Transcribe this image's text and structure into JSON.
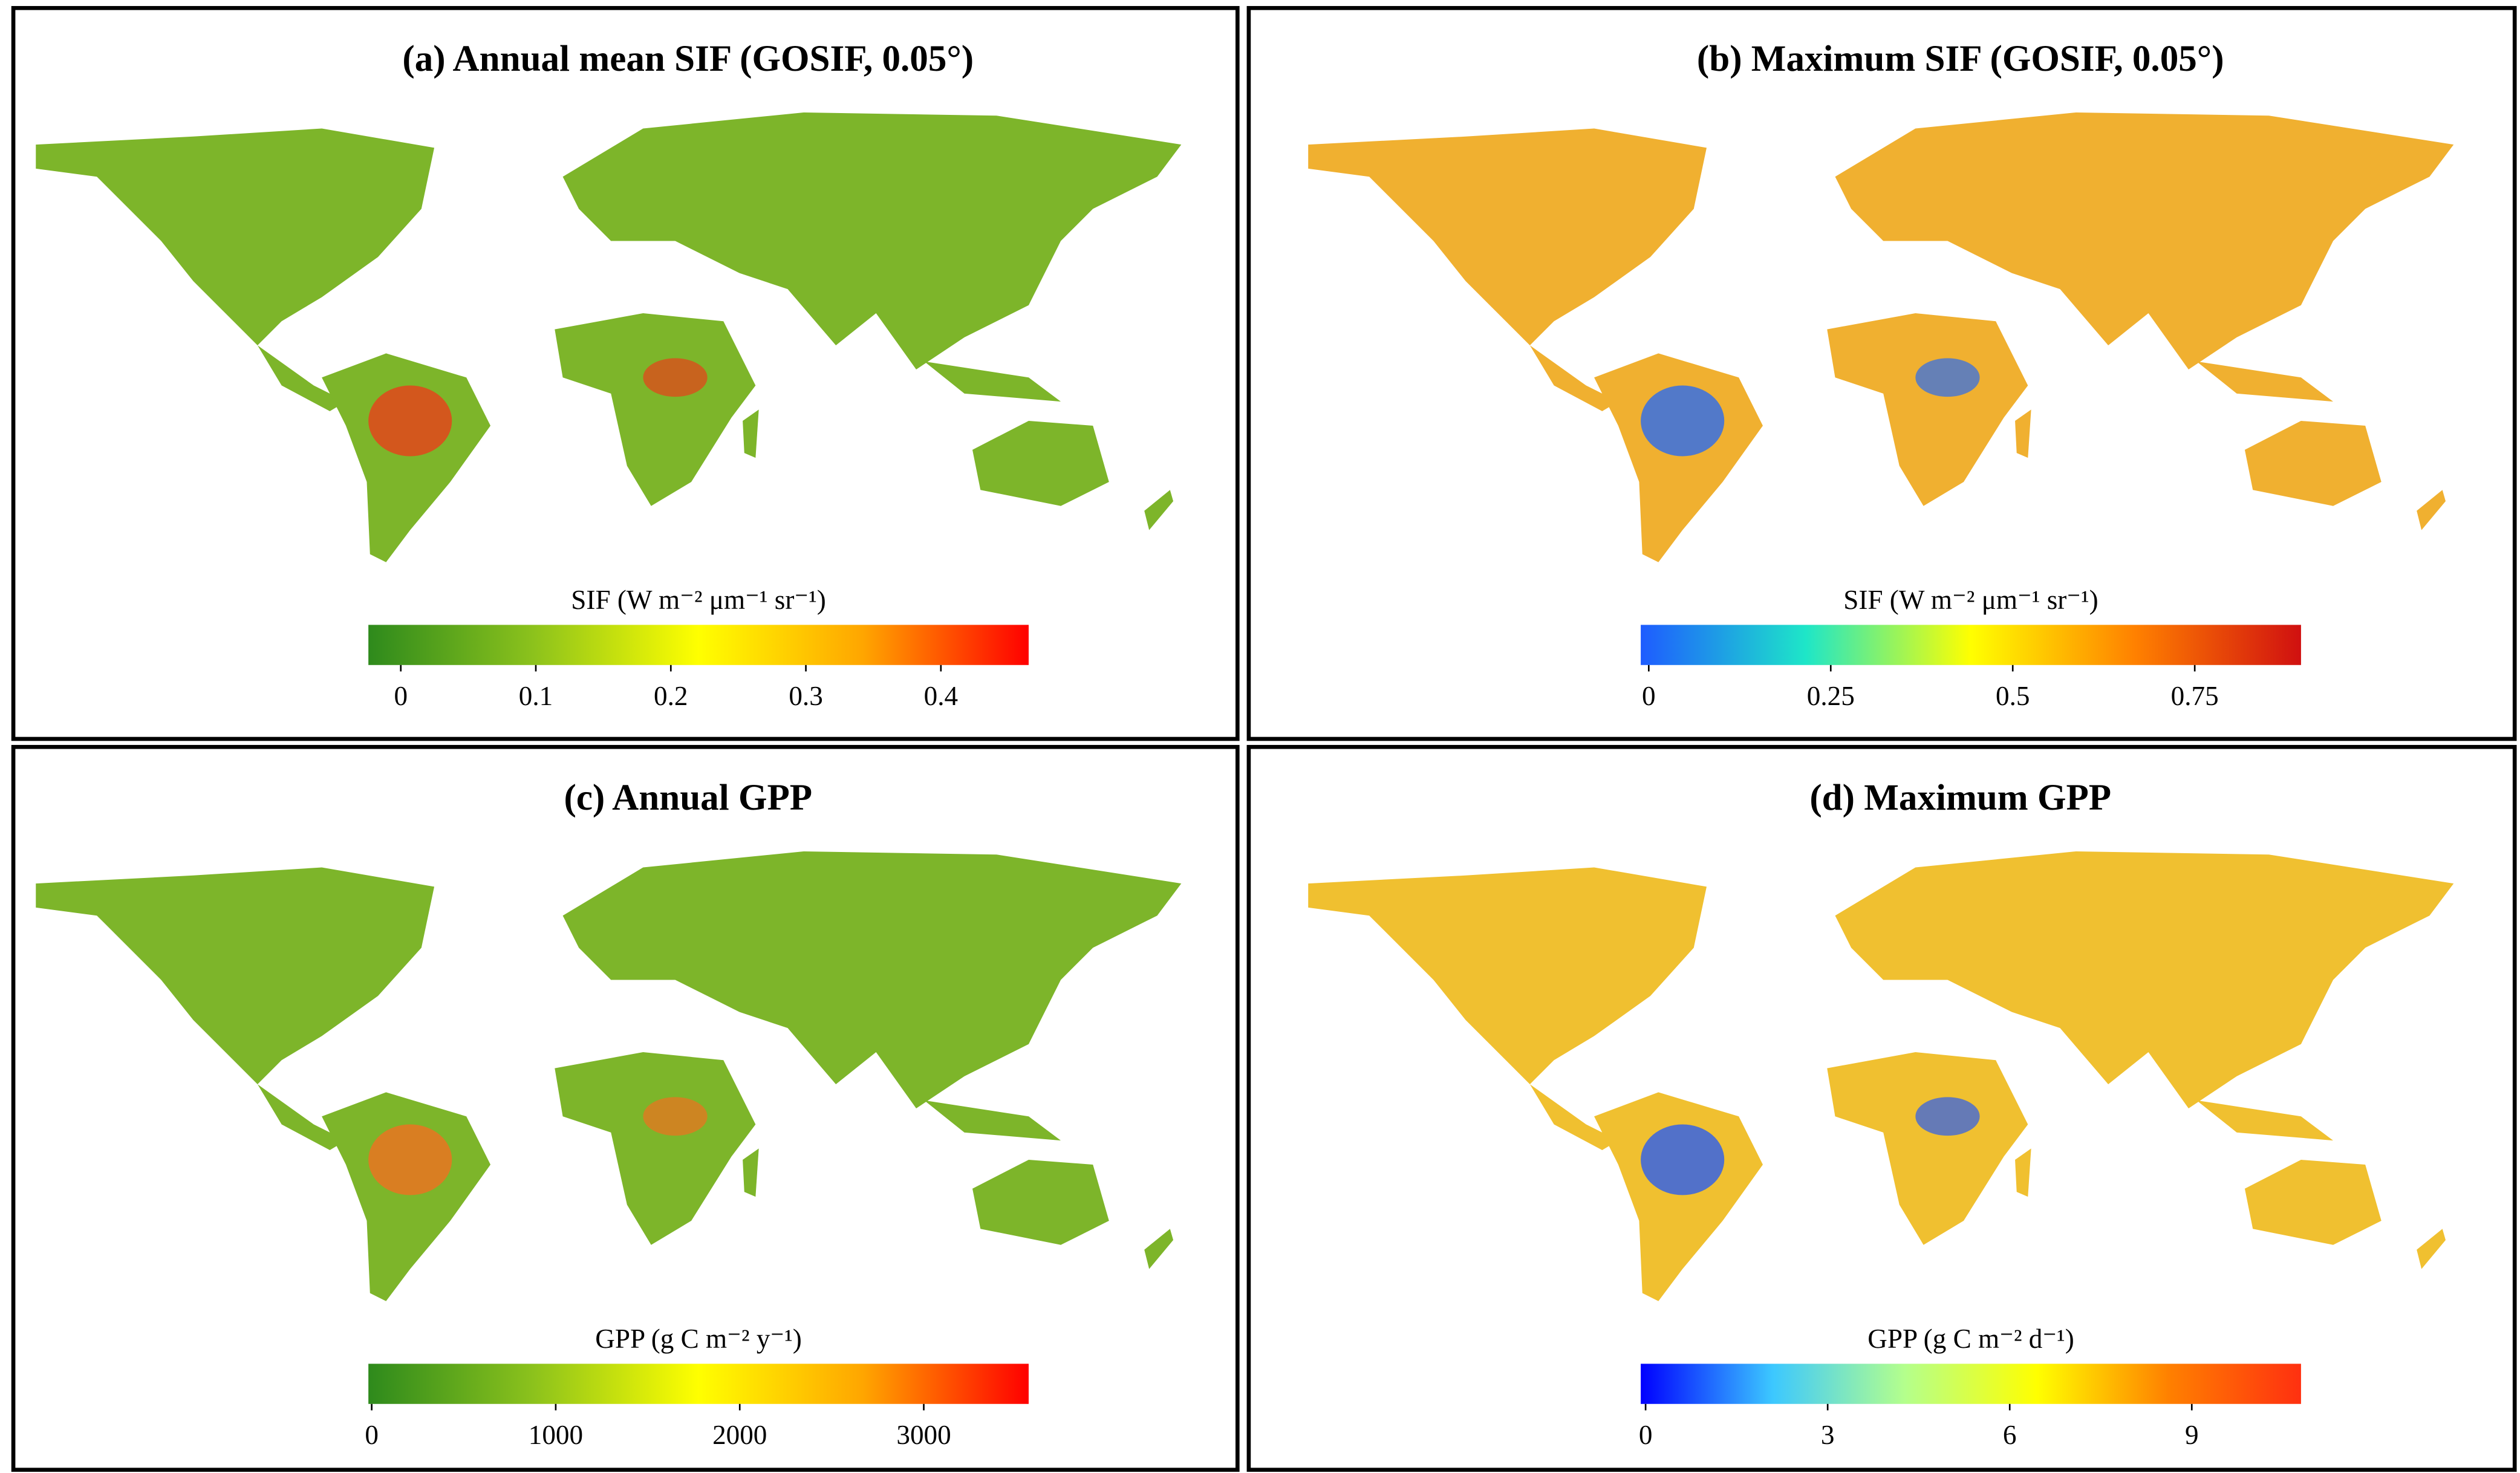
{
  "panels": [
    {
      "title": "(a) Annual mean SIF (GOSIF, 0.05°)",
      "colorbar": {
        "label": "SIF (W m⁻² μm⁻¹ sr⁻¹)",
        "lim": [
          -0.024,
          0.465
        ],
        "ticks": [
          0,
          0.1,
          0.2,
          0.3,
          0.4
        ],
        "colors": [
          "#2e8a1c",
          "#8cc21c",
          "#ffff00",
          "#ffa500",
          "#ff0000"
        ]
      }
    },
    {
      "title": "(b) Maximum SIF (GOSIF, 0.05°)",
      "colorbar": {
        "label": "SIF (W m⁻² μm⁻¹ sr⁻¹)",
        "lim": [
          -0.011,
          0.896
        ],
        "ticks": [
          0,
          0.25,
          0.5,
          0.75
        ],
        "colors": [
          "#1e5cff",
          "#1ee6c8",
          "#ffff00",
          "#ff8000",
          "#d01010"
        ]
      }
    },
    {
      "title": "(c) Annual GPP",
      "colorbar": {
        "label": "GPP (g C m⁻² y⁻¹)",
        "lim": [
          -18,
          3570
        ],
        "ticks": [
          0,
          1000,
          2000,
          3000
        ],
        "colors": [
          "#2e8a1c",
          "#8cc21c",
          "#ffff00",
          "#ffa500",
          "#ff0000"
        ]
      }
    },
    {
      "title": "(d) Maximum GPP",
      "colorbar": {
        "label": "GPP (g C m⁻² d⁻¹)",
        "lim": [
          -0.08,
          10.8
        ],
        "ticks": [
          0,
          3,
          6,
          9
        ],
        "colors": [
          "#0000ff",
          "#3cc8ff",
          "#b4ff8c",
          "#ffff00",
          "#ff8000",
          "#ff3010"
        ]
      }
    }
  ]
}
